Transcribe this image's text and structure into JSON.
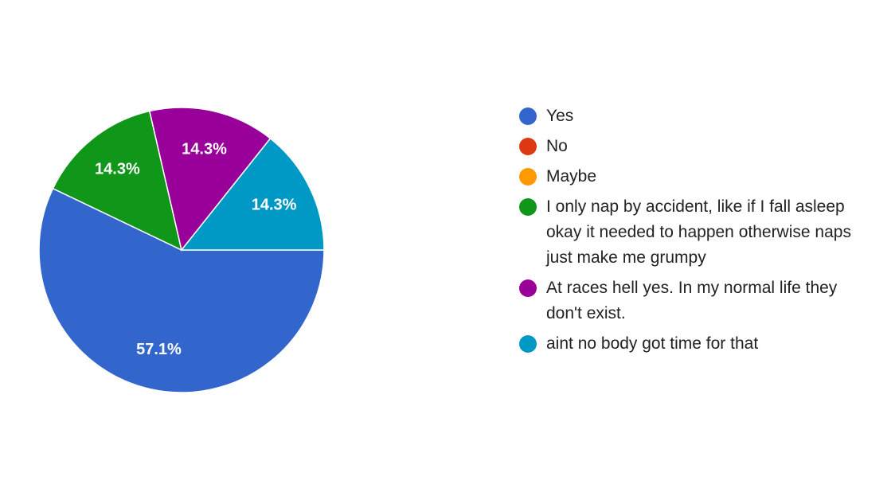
{
  "chart_data": {
    "type": "pie",
    "categories": [
      "Yes",
      "No",
      "Maybe",
      "I only nap by accident, like if I fall asleep okay it needed to happen otherwise naps just make me grumpy",
      "At races hell yes. In my normal life they don't exist.",
      "aint no body got time for that"
    ],
    "values": [
      57.1,
      0,
      0,
      14.3,
      14.3,
      14.3
    ],
    "value_labels": [
      "57.1%",
      null,
      null,
      "14.3%",
      "14.3%",
      "14.3%"
    ],
    "colors": [
      "#3366cc",
      "#dc3912",
      "#ff9900",
      "#109618",
      "#990099",
      "#0099c6"
    ],
    "legend": "right"
  }
}
